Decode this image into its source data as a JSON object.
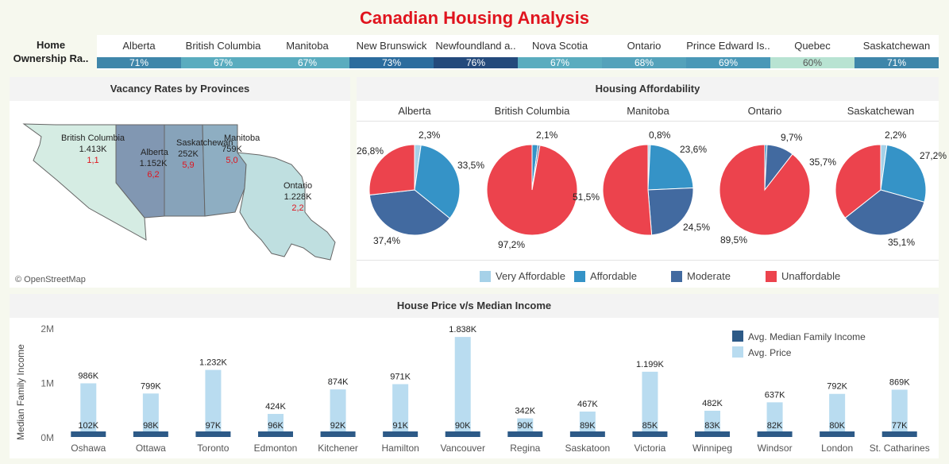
{
  "title": "Canadian Housing Analysis",
  "home_ownership": {
    "label_line1": "Home",
    "label_line2": "Ownership Ra..",
    "provinces": [
      {
        "name": "Alberta",
        "value": "71%",
        "color": "#3f86aa"
      },
      {
        "name": "British Columbia",
        "value": "67%",
        "color": "#5aacbf"
      },
      {
        "name": "Manitoba",
        "value": "67%",
        "color": "#5aacbf"
      },
      {
        "name": "New Brunswick",
        "value": "73%",
        "color": "#2c6c9e"
      },
      {
        "name": "Newfoundland a..",
        "value": "76%",
        "color": "#244a7c"
      },
      {
        "name": "Nova Scotia",
        "value": "67%",
        "color": "#5aacbf"
      },
      {
        "name": "Ontario",
        "value": "68%",
        "color": "#54a2bb"
      },
      {
        "name": "Prince Edward Is..",
        "value": "69%",
        "color": "#4a98b7"
      },
      {
        "name": "Quebec",
        "value": "60%",
        "color": "#b8e3d2"
      },
      {
        "name": "Saskatchewan",
        "value": "71%",
        "color": "#3f86aa"
      }
    ]
  },
  "vacancy": {
    "title": "Vacancy Rates by Provinces",
    "attribution": "© OpenStreetMap",
    "regions": [
      {
        "name": "British Columbia",
        "value": "1.413K",
        "rate": "1,1",
        "color": "#d5ece3"
      },
      {
        "name": "Alberta",
        "value": "1.152K",
        "rate": "6,2",
        "color": "#8197b2"
      },
      {
        "name": "Saskatchewan",
        "value": "252K",
        "rate": "5,9",
        "color": "#87a3ba"
      },
      {
        "name": "Manitoba",
        "value": "759K",
        "rate": "5,0",
        "color": "#8eaec2"
      },
      {
        "name": "Ontario",
        "value": "1.228K",
        "rate": "2,2",
        "color": "#bfdfe0"
      }
    ],
    "rate_color": "#e0141e"
  },
  "affordability": {
    "title": "Housing Affordability",
    "categories": [
      "Very Affordable",
      "Affordable",
      "Moderate",
      "Unaffordable"
    ],
    "colors": {
      "Very Affordable": "#a6d1e8",
      "Affordable": "#3593c7",
      "Moderate": "#426aa0",
      "Unaffordable": "#ec434d"
    },
    "pies": [
      {
        "province": "Alberta",
        "slices": [
          {
            "category": "Very Affordable",
            "value": 2.3,
            "label": "2,3%"
          },
          {
            "category": "Affordable",
            "value": 33.5,
            "label": "33,5%"
          },
          {
            "category": "Moderate",
            "value": 37.4,
            "label": "37,4%"
          },
          {
            "category": "Unaffordable",
            "value": 26.8,
            "label": "26,8%"
          }
        ]
      },
      {
        "province": "British Columbia",
        "slices": [
          {
            "category": "Affordable",
            "value": 2.1,
            "label": "2,1%"
          },
          {
            "category": "Moderate",
            "value": 0.7,
            "label": ""
          },
          {
            "category": "Unaffordable",
            "value": 97.2,
            "label": "97,2%"
          }
        ]
      },
      {
        "province": "Manitoba",
        "slices": [
          {
            "category": "Very Affordable",
            "value": 0.8,
            "label": "0,8%"
          },
          {
            "category": "Affordable",
            "value": 23.6,
            "label": "23,6%"
          },
          {
            "category": "Moderate",
            "value": 24.5,
            "label": "24,5%"
          },
          {
            "category": "Unaffordable",
            "value": 51.5,
            "label": "51,5%"
          }
        ]
      },
      {
        "province": "Ontario",
        "slices": [
          {
            "category": "Affordable",
            "value": 0.8,
            "label": ""
          },
          {
            "category": "Moderate",
            "value": 9.7,
            "label": "9,7%"
          },
          {
            "category": "Unaffordable",
            "value": 89.5,
            "label": "89,5%"
          }
        ]
      },
      {
        "province": "Saskatchewan",
        "slices": [
          {
            "category": "Very Affordable",
            "value": 2.2,
            "label": "2,2%"
          },
          {
            "category": "Affordable",
            "value": 27.2,
            "label": "27,2%"
          },
          {
            "category": "Moderate",
            "value": 35.1,
            "label": "35,1%"
          },
          {
            "category": "Unaffordable",
            "value": 35.7,
            "label": "35,7%"
          }
        ]
      }
    ]
  },
  "chart_data": {
    "type": "bar",
    "title": "House Price v/s Median Income",
    "ylabel": "Median Family Income",
    "ylim": [
      0,
      2000000
    ],
    "y_ticks": [
      {
        "value": 0,
        "label": "0M"
      },
      {
        "value": 1000000,
        "label": "1M"
      },
      {
        "value": 2000000,
        "label": "2M"
      }
    ],
    "legend_position": "top-right",
    "categories": [
      "Oshawa",
      "Ottawa",
      "Toronto",
      "Edmonton",
      "Kitchener",
      "Hamilton",
      "Vancouver",
      "Regina",
      "Saskatoon",
      "Victoria",
      "Winnipeg",
      "Windsor",
      "London",
      "St. Catharines"
    ],
    "series": [
      {
        "name": "Avg. Median Family Income",
        "color": "#2d5a87",
        "values": [
          102000,
          98000,
          97000,
          96000,
          92000,
          91000,
          90000,
          90000,
          89000,
          85000,
          83000,
          82000,
          80000,
          77000
        ],
        "labels": [
          "102K",
          "98K",
          "97K",
          "96K",
          "92K",
          "91K",
          "90K",
          "90K",
          "89K",
          "85K",
          "83K",
          "82K",
          "80K",
          "77K"
        ]
      },
      {
        "name": "Avg. Price",
        "color": "#b9dcf0",
        "values": [
          986000,
          799000,
          1232000,
          424000,
          874000,
          971000,
          1838000,
          342000,
          467000,
          1199000,
          482000,
          637000,
          792000,
          869000
        ],
        "labels": [
          "986K",
          "799K",
          "1.232K",
          "424K",
          "874K",
          "971K",
          "1.838K",
          "342K",
          "467K",
          "1.199K",
          "482K",
          "637K",
          "792K",
          "869K"
        ]
      }
    ]
  }
}
